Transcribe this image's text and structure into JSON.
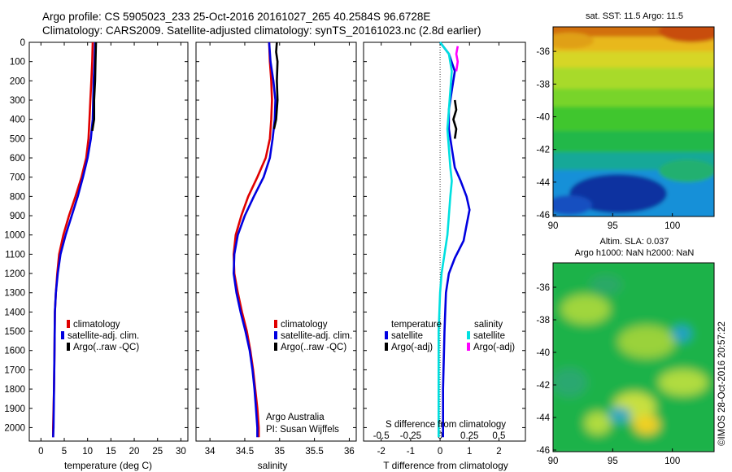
{
  "header": {
    "line1": "Argo profile: CS 5905023_233 25-Oct-2016 20161027_265 40.2584S 96.6728E",
    "line2": "Climatology: CARS2009. Satellite-adjusted climatology: synTS_20161023.nc (2.8d earlier)"
  },
  "footer": {
    "vertical_stamp": "©IMOS 28-Oct-2016 20:57:22",
    "institution": "Argo Australia",
    "pi": "PI: Susan Wijffels"
  },
  "colors": {
    "climatology": "#e00000",
    "satellite_adj": "#0000e0",
    "argo": "#000000",
    "sal_satellite": "#00e0e0",
    "sal_argo": "#ff00ff"
  },
  "maps": {
    "sst": {
      "title": "sat. SST: 11.5 Argo: 11.5",
      "x_ticks": [
        "90",
        "95",
        "100"
      ],
      "y_ticks": [
        "-36",
        "-38",
        "-40",
        "-42",
        "-44",
        "-46"
      ]
    },
    "sla": {
      "title1": "Altim. SLA: 0.037",
      "title2": "Argo h1000: NaN h2000: NaN",
      "x_ticks": [
        "90",
        "95",
        "100"
      ],
      "y_ticks": [
        "-36",
        "-38",
        "-40",
        "-42",
        "-44",
        "-46"
      ]
    }
  },
  "chart_data": [
    {
      "type": "line",
      "id": "temperature",
      "xlabel": "temperature (deg C)",
      "ylabel": "",
      "xlim": [
        -2.5,
        31.5
      ],
      "ylim": [
        2070,
        0
      ],
      "x_ticks": [
        "0",
        "5",
        "10",
        "15",
        "20",
        "25",
        "30"
      ],
      "y_ticks": [
        "0",
        "100",
        "200",
        "300",
        "400",
        "500",
        "600",
        "700",
        "800",
        "900",
        "1000",
        "1100",
        "1200",
        "1300",
        "1400",
        "1500",
        "1600",
        "1700",
        "1800",
        "1900",
        "2000"
      ],
      "legend": [
        "climatology",
        "satellite-adj. clim.",
        "Argo(..raw -QC)"
      ],
      "series": [
        {
          "name": "climatology",
          "color": "#e00000",
          "points": [
            [
              11.1,
              0
            ],
            [
              11.0,
              100
            ],
            [
              10.8,
              200
            ],
            [
              10.6,
              300
            ],
            [
              10.4,
              400
            ],
            [
              10.2,
              500
            ],
            [
              9.7,
              600
            ],
            [
              8.7,
              700
            ],
            [
              7.4,
              800
            ],
            [
              6.0,
              900
            ],
            [
              4.8,
              1000
            ],
            [
              3.9,
              1100
            ],
            [
              3.5,
              1200
            ],
            [
              3.2,
              1300
            ],
            [
              3.0,
              1400
            ],
            [
              2.9,
              1600
            ],
            [
              2.8,
              1800
            ],
            [
              2.6,
              2000
            ],
            [
              2.6,
              2050
            ]
          ]
        },
        {
          "name": "satellite-adj. clim.",
          "color": "#0000e0",
          "points": [
            [
              11.6,
              0
            ],
            [
              11.5,
              100
            ],
            [
              11.3,
              200
            ],
            [
              11.2,
              300
            ],
            [
              11.1,
              400
            ],
            [
              10.7,
              500
            ],
            [
              10.0,
              600
            ],
            [
              9.0,
              700
            ],
            [
              7.9,
              800
            ],
            [
              6.6,
              900
            ],
            [
              5.3,
              1000
            ],
            [
              4.2,
              1100
            ],
            [
              3.6,
              1200
            ],
            [
              3.2,
              1300
            ],
            [
              3.0,
              1400
            ],
            [
              2.9,
              1600
            ],
            [
              2.8,
              1800
            ],
            [
              2.7,
              2000
            ],
            [
              2.6,
              2050
            ]
          ]
        },
        {
          "name": "Argo(..raw -QC)",
          "color": "#000000",
          "points": [
            [
              11.8,
              0
            ],
            [
              11.7,
              100
            ],
            [
              11.6,
              200
            ],
            [
              11.4,
              300
            ],
            [
              11.4,
              400
            ],
            [
              11.0,
              460
            ]
          ]
        }
      ]
    },
    {
      "type": "line",
      "id": "salinity",
      "xlabel": "salinity",
      "ylabel": "",
      "xlim": [
        33.8,
        36.1
      ],
      "ylim": [
        2070,
        0
      ],
      "x_ticks": [
        "34",
        "34.5",
        "35",
        "35.5",
        "36"
      ],
      "legend": [
        "climatology",
        "satellite-adj. clim.",
        "Argo(..raw -QC)"
      ],
      "series": [
        {
          "name": "climatology",
          "color": "#e00000",
          "points": [
            [
              34.85,
              0
            ],
            [
              34.86,
              100
            ],
            [
              34.88,
              200
            ],
            [
              34.89,
              300
            ],
            [
              34.88,
              400
            ],
            [
              34.86,
              500
            ],
            [
              34.8,
              600
            ],
            [
              34.68,
              700
            ],
            [
              34.55,
              800
            ],
            [
              34.45,
              900
            ],
            [
              34.37,
              1000
            ],
            [
              34.34,
              1100
            ],
            [
              34.35,
              1200
            ],
            [
              34.4,
              1300
            ],
            [
              34.46,
              1400
            ],
            [
              34.53,
              1500
            ],
            [
              34.58,
              1600
            ],
            [
              34.62,
              1700
            ],
            [
              34.65,
              1800
            ],
            [
              34.68,
              1900
            ],
            [
              34.7,
              2000
            ],
            [
              34.7,
              2050
            ]
          ]
        },
        {
          "name": "satellite-adj. clim.",
          "color": "#0000e0",
          "points": [
            [
              34.85,
              0
            ],
            [
              34.87,
              100
            ],
            [
              34.91,
              200
            ],
            [
              34.94,
              300
            ],
            [
              34.93,
              400
            ],
            [
              34.9,
              500
            ],
            [
              34.86,
              600
            ],
            [
              34.77,
              700
            ],
            [
              34.63,
              800
            ],
            [
              34.5,
              900
            ],
            [
              34.4,
              1000
            ],
            [
              34.35,
              1100
            ],
            [
              34.34,
              1200
            ],
            [
              34.38,
              1300
            ],
            [
              34.44,
              1400
            ],
            [
              34.51,
              1500
            ],
            [
              34.57,
              1600
            ],
            [
              34.61,
              1700
            ],
            [
              34.64,
              1800
            ],
            [
              34.66,
              1900
            ],
            [
              34.68,
              2000
            ],
            [
              34.68,
              2050
            ]
          ]
        },
        {
          "name": "Argo(..raw -QC)",
          "color": "#000000",
          "points": [
            [
              34.96,
              0
            ],
            [
              34.95,
              50
            ],
            [
              34.97,
              100
            ],
            [
              34.96,
              200
            ],
            [
              34.97,
              300
            ],
            [
              34.95,
              400
            ],
            [
              34.92,
              450
            ]
          ]
        }
      ]
    },
    {
      "type": "line",
      "id": "difference",
      "xlabel": "T difference from climatology",
      "x2label": "S difference from climatology",
      "ylabel": "",
      "xlim": [
        -2.6,
        2.9
      ],
      "ylim": [
        2070,
        0
      ],
      "x_ticks": [
        "-2",
        "-1",
        "0",
        "1",
        "2"
      ],
      "x2_ticks": [
        "-0.5",
        "-0.25",
        "0",
        "0.25",
        "0.5"
      ],
      "legend_temperature_title": "temperature",
      "legend_salinity_title": "salinity",
      "legend": [
        "satellite",
        "Argo(-adj)",
        "satellite",
        "Argo(-adj)"
      ],
      "series": [
        {
          "name": "temperature satellite",
          "color": "#0000e0",
          "points": [
            [
              0.0,
              0
            ],
            [
              0.3,
              60
            ],
            [
              0.5,
              150
            ],
            [
              0.4,
              250
            ],
            [
              0.3,
              350
            ],
            [
              0.3,
              450
            ],
            [
              0.4,
              550
            ],
            [
              0.5,
              650
            ],
            [
              0.7,
              720
            ],
            [
              0.9,
              800
            ],
            [
              1.0,
              870
            ],
            [
              0.9,
              950
            ],
            [
              0.8,
              1030
            ],
            [
              0.5,
              1120
            ],
            [
              0.3,
              1200
            ],
            [
              0.2,
              1300
            ],
            [
              0.15,
              1500
            ],
            [
              0.1,
              1800
            ],
            [
              0.1,
              2050
            ]
          ]
        },
        {
          "name": "temperature Argo(-adj)",
          "color": "#000000",
          "points": [
            [
              0.5,
              300
            ],
            [
              0.55,
              350
            ],
            [
              0.45,
              400
            ],
            [
              0.55,
              450
            ],
            [
              0.5,
              500
            ]
          ]
        },
        {
          "name": "salinity satellite",
          "color": "#00e0e0",
          "points": [
            [
              0.0,
              0
            ],
            [
              0.3,
              60
            ],
            [
              0.4,
              150
            ],
            [
              0.35,
              250
            ],
            [
              0.3,
              350
            ],
            [
              0.25,
              450
            ],
            [
              0.3,
              550
            ],
            [
              0.35,
              650
            ],
            [
              0.4,
              720
            ],
            [
              0.35,
              800
            ],
            [
              0.3,
              900
            ],
            [
              0.25,
              1000
            ],
            [
              0.15,
              1100
            ],
            [
              0.05,
              1200
            ],
            [
              0.0,
              1300
            ],
            [
              -0.05,
              1500
            ],
            [
              -0.05,
              1800
            ],
            [
              -0.05,
              2050
            ]
          ]
        },
        {
          "name": "salinity Argo(-adj)",
          "color": "#ff00ff",
          "points": [
            [
              0.6,
              20
            ],
            [
              0.55,
              60
            ],
            [
              0.6,
              100
            ],
            [
              0.55,
              150
            ]
          ]
        }
      ]
    }
  ]
}
